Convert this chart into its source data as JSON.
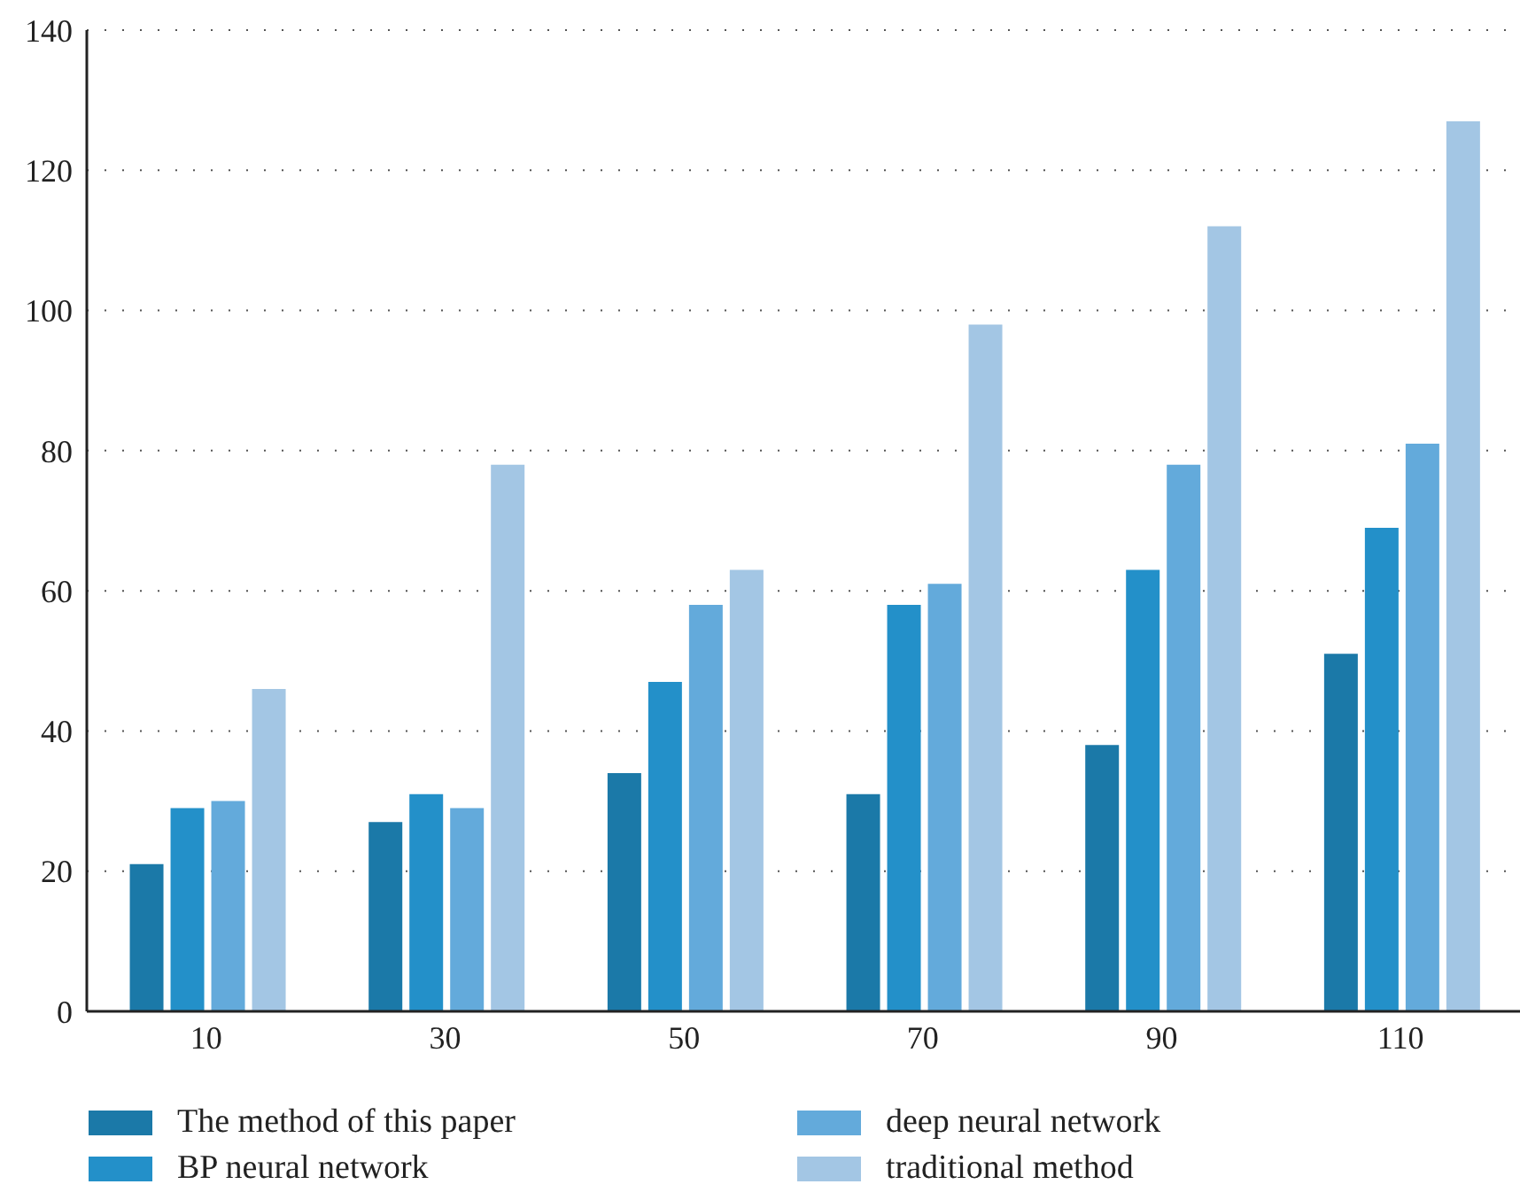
{
  "chart_data": {
    "type": "bar",
    "categories": [
      "10",
      "30",
      "50",
      "70",
      "90",
      "110"
    ],
    "series": [
      {
        "name": "The method of this paper",
        "color": "#1b79a8",
        "values": [
          21,
          27,
          34,
          31,
          38,
          51
        ]
      },
      {
        "name": "BP neural network",
        "color": "#2390c9",
        "values": [
          29,
          31,
          47,
          58,
          63,
          69
        ]
      },
      {
        "name": "deep neural network",
        "color": "#63aadb",
        "values": [
          30,
          29,
          58,
          61,
          78,
          81
        ]
      },
      {
        "name": "traditional method",
        "color": "#a3c6e4",
        "values": [
          46,
          78,
          63,
          98,
          112,
          127
        ]
      }
    ],
    "ylim": [
      0,
      140
    ],
    "yticks": [
      0,
      20,
      40,
      60,
      80,
      100,
      120,
      140
    ],
    "grid": "y",
    "legend": "bottom"
  }
}
